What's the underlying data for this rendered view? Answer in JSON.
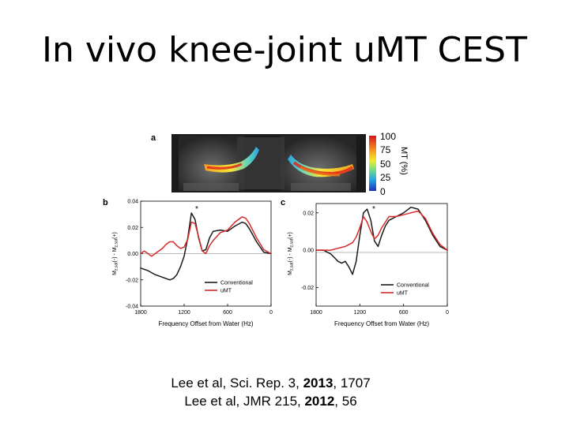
{
  "slide": {
    "title": "In vivo knee-joint uMT CEST"
  },
  "figure": {
    "panel_a": {
      "label": "a",
      "colorbar_ticks": [
        "100",
        "75",
        "50",
        "25",
        "0"
      ],
      "colorbar_label": "MT (%)"
    },
    "panel_b": {
      "label": "b",
      "star": "*"
    },
    "panel_c": {
      "label": "c",
      "star": "*"
    }
  },
  "chart_data": [
    {
      "type": "line",
      "panel": "b",
      "xlabel": "Frequency Offset from Water (Hz)",
      "ylabel": "M_z,sat(-) - M_z,sat(+)",
      "xlim": [
        1800,
        0
      ],
      "ylim": [
        -0.04,
        0.04
      ],
      "xticks": [
        "1800",
        "1200",
        "600",
        "0"
      ],
      "yticks": [
        "0.04",
        "0.02",
        "0.00",
        "-0.02",
        "-0.04"
      ],
      "legend_position": "bottom-right",
      "series": [
        {
          "name": "Conventional",
          "color": "#1a1a1a",
          "x": [
            1800,
            1700,
            1600,
            1500,
            1450,
            1400,
            1350,
            1300,
            1250,
            1200,
            1150,
            1100,
            1050,
            1000,
            950,
            900,
            850,
            800,
            700,
            600,
            500,
            400,
            350,
            300,
            200,
            100,
            0
          ],
          "y": [
            -0.011,
            -0.013,
            -0.016,
            -0.018,
            -0.019,
            -0.02,
            -0.019,
            -0.016,
            -0.01,
            -0.002,
            0.012,
            0.031,
            0.026,
            0.012,
            0.002,
            0.003,
            0.012,
            0.017,
            0.018,
            0.017,
            0.021,
            0.024,
            0.023,
            0.019,
            0.009,
            0.001,
            0.0
          ]
        },
        {
          "name": "uMT",
          "color": "#d62a2a",
          "x": [
            1800,
            1750,
            1700,
            1650,
            1600,
            1500,
            1450,
            1400,
            1350,
            1300,
            1250,
            1200,
            1150,
            1100,
            1050,
            1000,
            950,
            900,
            850,
            800,
            700,
            600,
            500,
            400,
            350,
            300,
            200,
            100,
            0
          ],
          "y": [
            0.0,
            0.002,
            0.0,
            -0.002,
            0.0,
            0.004,
            0.007,
            0.009,
            0.009,
            0.006,
            0.004,
            0.005,
            0.011,
            0.024,
            0.023,
            0.013,
            0.002,
            0.0,
            0.006,
            0.01,
            0.016,
            0.018,
            0.024,
            0.028,
            0.027,
            0.023,
            0.012,
            0.003,
            0.0
          ]
        }
      ]
    },
    {
      "type": "line",
      "panel": "c",
      "xlabel": "Frequency Offset from Water (Hz)",
      "ylabel": "M_z,sat(-) - M_z,sat(+)",
      "xlim": [
        1800,
        0
      ],
      "ylim": [
        -0.03,
        0.025
      ],
      "xticks": [
        "1800",
        "1200",
        "600",
        "0"
      ],
      "yticks": [
        "0.02",
        "0.00",
        "-0.02"
      ],
      "legend_position": "bottom-right",
      "series": [
        {
          "name": "Conventional",
          "color": "#1a1a1a",
          "x": [
            1800,
            1700,
            1600,
            1550,
            1500,
            1450,
            1400,
            1350,
            1300,
            1250,
            1200,
            1150,
            1100,
            1050,
            1000,
            950,
            900,
            850,
            800,
            700,
            600,
            500,
            400,
            300,
            200,
            100,
            0
          ],
          "y": [
            0.0,
            0.0,
            -0.002,
            -0.004,
            -0.006,
            -0.007,
            -0.006,
            -0.009,
            -0.013,
            -0.006,
            0.008,
            0.02,
            0.022,
            0.016,
            0.005,
            0.002,
            0.008,
            0.013,
            0.016,
            0.018,
            0.02,
            0.023,
            0.022,
            0.016,
            0.008,
            0.002,
            0.0
          ]
        },
        {
          "name": "uMT",
          "color": "#d62a2a",
          "x": [
            1800,
            1700,
            1600,
            1500,
            1400,
            1300,
            1250,
            1200,
            1150,
            1100,
            1050,
            1000,
            950,
            900,
            850,
            800,
            700,
            600,
            500,
            400,
            300,
            200,
            100,
            0
          ],
          "y": [
            0.0,
            0.0,
            0.0,
            0.001,
            0.002,
            0.004,
            0.007,
            0.012,
            0.018,
            0.015,
            0.01,
            0.006,
            0.008,
            0.012,
            0.015,
            0.018,
            0.018,
            0.019,
            0.02,
            0.021,
            0.017,
            0.009,
            0.003,
            0.0
          ]
        }
      ]
    }
  ],
  "citations": [
    {
      "pre": "Lee et al, Sci. Rep. 3, ",
      "bold": "2013",
      "post": ", 1707"
    },
    {
      "pre": "Lee et al, JMR 215, ",
      "bold": "2012",
      "post": ", 56"
    }
  ]
}
